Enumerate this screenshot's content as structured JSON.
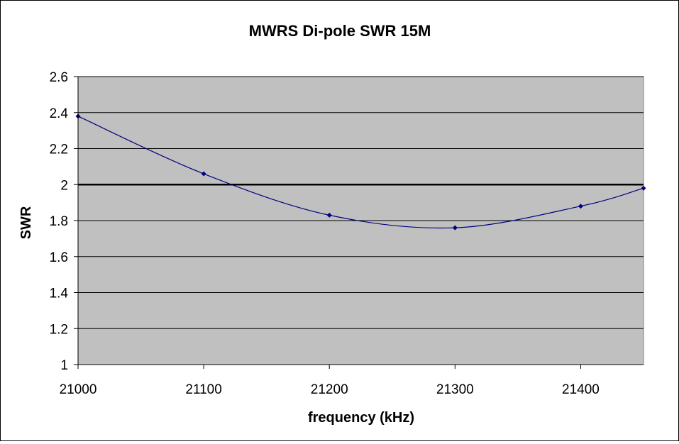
{
  "chart_data": {
    "type": "line",
    "title": "MWRS Di-pole SWR 15M",
    "xlabel": "frequency (kHz)",
    "ylabel": "SWR",
    "xlim": [
      21000,
      21450
    ],
    "ylim": [
      1,
      2.6
    ],
    "xticks": [
      21000,
      21100,
      21200,
      21300,
      21400
    ],
    "yticks": [
      1,
      1.2,
      1.4,
      1.6,
      1.8,
      2,
      2.2,
      2.4,
      2.6
    ],
    "ytick_labels": [
      "1",
      "1.2",
      "1.4",
      "1.6",
      "1.8",
      "2",
      "2.2",
      "2.4",
      "2.6"
    ],
    "grid": true,
    "legend": "none",
    "plot_background": "#c0c0c0",
    "series": [
      {
        "color": "#000080",
        "smooth": true,
        "marker": "diamond",
        "x": [
          21000,
          21100,
          21200,
          21300,
          21400,
          21450
        ],
        "y": [
          2.38,
          2.06,
          1.83,
          1.76,
          1.88,
          1.98
        ]
      }
    ],
    "reference_line": {
      "y": 2,
      "color": "#000000"
    }
  }
}
